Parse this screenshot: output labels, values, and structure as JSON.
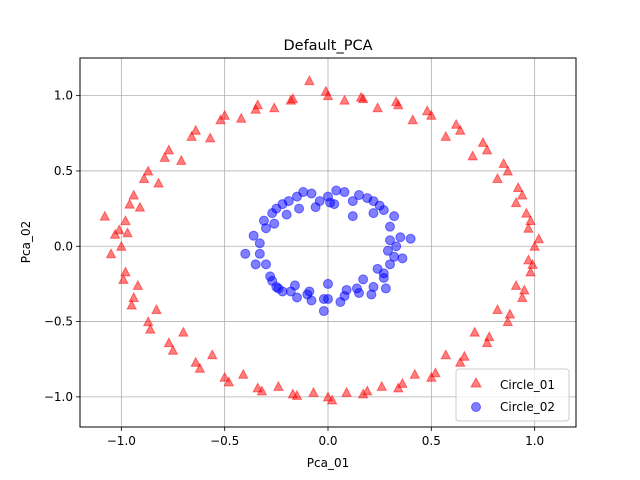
{
  "chart_data": {
    "type": "scatter",
    "title": "Default_PCA",
    "xlabel": "Pca_01",
    "ylabel": "Pca_02",
    "xlim": [
      -1.2,
      1.2
    ],
    "ylim": [
      -1.2,
      1.25
    ],
    "xticks": [
      -1.0,
      -0.5,
      0.0,
      0.5,
      1.0
    ],
    "xtick_labels": [
      "−1.0",
      "−0.5",
      "0.0",
      "0.5",
      "1.0"
    ],
    "yticks": [
      -1.0,
      -0.5,
      0.0,
      0.5,
      1.0
    ],
    "ytick_labels": [
      "−1.0",
      "−0.5",
      "0.0",
      "0.5",
      "1.0"
    ],
    "grid": true,
    "legend_position": "bottom-right",
    "series": [
      {
        "name": "Circle_01",
        "marker": "triangle",
        "color": "#ff0000",
        "alpha": 0.5,
        "x": [
          1.0,
          0.98,
          0.94,
          0.87,
          0.77,
          0.64,
          0.5,
          0.34,
          0.17,
          0.0,
          -0.17,
          -0.34,
          -0.5,
          -0.64,
          -0.77,
          -0.87,
          -0.94,
          -0.98,
          -1.0,
          -0.98,
          -0.94,
          -0.87,
          -0.77,
          -0.64,
          -0.5,
          -0.34,
          -0.17,
          0.0,
          0.17,
          0.34,
          0.5,
          0.64,
          0.77,
          0.87,
          0.94,
          0.98,
          1.02,
          0.96,
          0.92,
          0.85,
          0.75,
          0.62,
          0.48,
          0.33,
          0.16,
          -0.01,
          -0.18,
          -0.35,
          -0.52,
          -0.66,
          -0.79,
          -0.89,
          -0.96,
          -1.01,
          -1.05,
          -0.99,
          -0.95,
          -0.86,
          -0.75,
          -0.62,
          -0.48,
          -0.32,
          -0.15,
          0.02,
          0.19,
          0.36,
          0.52,
          0.66,
          0.78,
          0.88,
          0.95,
          0.99,
          0.97,
          0.91,
          0.82,
          0.7,
          0.57,
          0.41,
          0.24,
          0.08,
          -0.09,
          -0.26,
          -0.42,
          -0.57,
          -0.71,
          -0.82,
          -0.91,
          -0.97,
          -1.08,
          -1.03,
          -0.92,
          -0.83,
          -0.7,
          -0.56,
          -0.41,
          -0.24,
          -0.07,
          0.09,
          0.26,
          0.42,
          0.57,
          0.71,
          0.82,
          0.91,
          0.97
        ],
        "y": [
          0.0,
          0.17,
          0.34,
          0.5,
          0.64,
          0.77,
          0.87,
          0.94,
          0.98,
          1.0,
          0.98,
          0.94,
          0.87,
          0.77,
          0.64,
          0.5,
          0.34,
          0.17,
          0.0,
          -0.17,
          -0.34,
          -0.5,
          -0.64,
          -0.77,
          -0.87,
          -0.94,
          -0.98,
          -1.0,
          -0.98,
          -0.94,
          -0.87,
          -0.77,
          -0.64,
          -0.5,
          -0.34,
          -0.17,
          0.05,
          0.22,
          0.39,
          0.55,
          0.69,
          0.81,
          0.9,
          0.96,
          0.99,
          1.03,
          0.97,
          0.91,
          0.84,
          0.73,
          0.59,
          0.45,
          0.28,
          0.11,
          -0.05,
          -0.22,
          -0.39,
          -0.55,
          -0.69,
          -0.81,
          -0.9,
          -0.96,
          -0.99,
          -1.02,
          -0.96,
          -0.91,
          -0.84,
          -0.73,
          -0.6,
          -0.45,
          -0.29,
          -0.12,
          0.12,
          0.29,
          0.45,
          0.6,
          0.73,
          0.84,
          0.92,
          0.97,
          1.1,
          0.92,
          0.85,
          0.72,
          0.57,
          0.42,
          0.26,
          0.09,
          0.2,
          0.08,
          -0.26,
          -0.42,
          -0.57,
          -0.72,
          -0.85,
          -0.93,
          -0.97,
          -0.97,
          -0.93,
          -0.85,
          -0.72,
          -0.57,
          -0.42,
          -0.26,
          -0.09
        ]
      },
      {
        "name": "Circle_02",
        "marker": "circle",
        "color": "#0000ff",
        "alpha": 0.5,
        "x": [
          0.33,
          0.3,
          0.27,
          0.22,
          0.15,
          0.08,
          0.0,
          -0.08,
          -0.15,
          -0.22,
          -0.27,
          -0.3,
          -0.33,
          -0.3,
          -0.27,
          -0.22,
          -0.15,
          -0.08,
          0.0,
          0.08,
          0.15,
          0.22,
          0.27,
          0.3,
          0.35,
          0.32,
          0.25,
          0.19,
          0.12,
          0.04,
          -0.04,
          -0.12,
          -0.19,
          -0.25,
          -0.31,
          -0.36,
          -0.4,
          -0.33,
          -0.25,
          -0.18,
          -0.1,
          -0.02,
          0.06,
          0.14,
          0.21,
          0.27,
          0.32,
          0.4,
          0.28,
          0.22,
          0.12,
          0.03,
          -0.06,
          -0.14,
          -0.2,
          -0.26,
          -0.35,
          -0.28,
          -0.24,
          -0.16,
          -0.09,
          0.0,
          0.09,
          0.17,
          0.24,
          0.29,
          0.3,
          0.36,
          -0.02,
          0.01
        ],
        "y": [
          0.0,
          0.13,
          0.24,
          0.3,
          0.34,
          0.36,
          0.33,
          0.35,
          0.33,
          0.28,
          0.22,
          0.12,
          0.02,
          -0.12,
          -0.23,
          -0.3,
          -0.34,
          -0.36,
          -0.35,
          -0.33,
          -0.31,
          -0.27,
          -0.21,
          -0.12,
          0.06,
          0.2,
          0.27,
          0.32,
          0.3,
          0.37,
          0.3,
          0.36,
          0.3,
          0.25,
          0.17,
          0.07,
          -0.05,
          -0.05,
          -0.27,
          -0.3,
          -0.32,
          -0.35,
          -0.37,
          -0.28,
          -0.32,
          -0.18,
          -0.07,
          0.05,
          -0.28,
          0.22,
          0.2,
          0.28,
          0.26,
          0.25,
          0.21,
          0.15,
          -0.12,
          -0.2,
          -0.28,
          -0.26,
          -0.3,
          -0.25,
          -0.29,
          -0.22,
          -0.15,
          -0.03,
          0.04,
          -0.08,
          -0.43,
          0.29
        ]
      }
    ]
  }
}
